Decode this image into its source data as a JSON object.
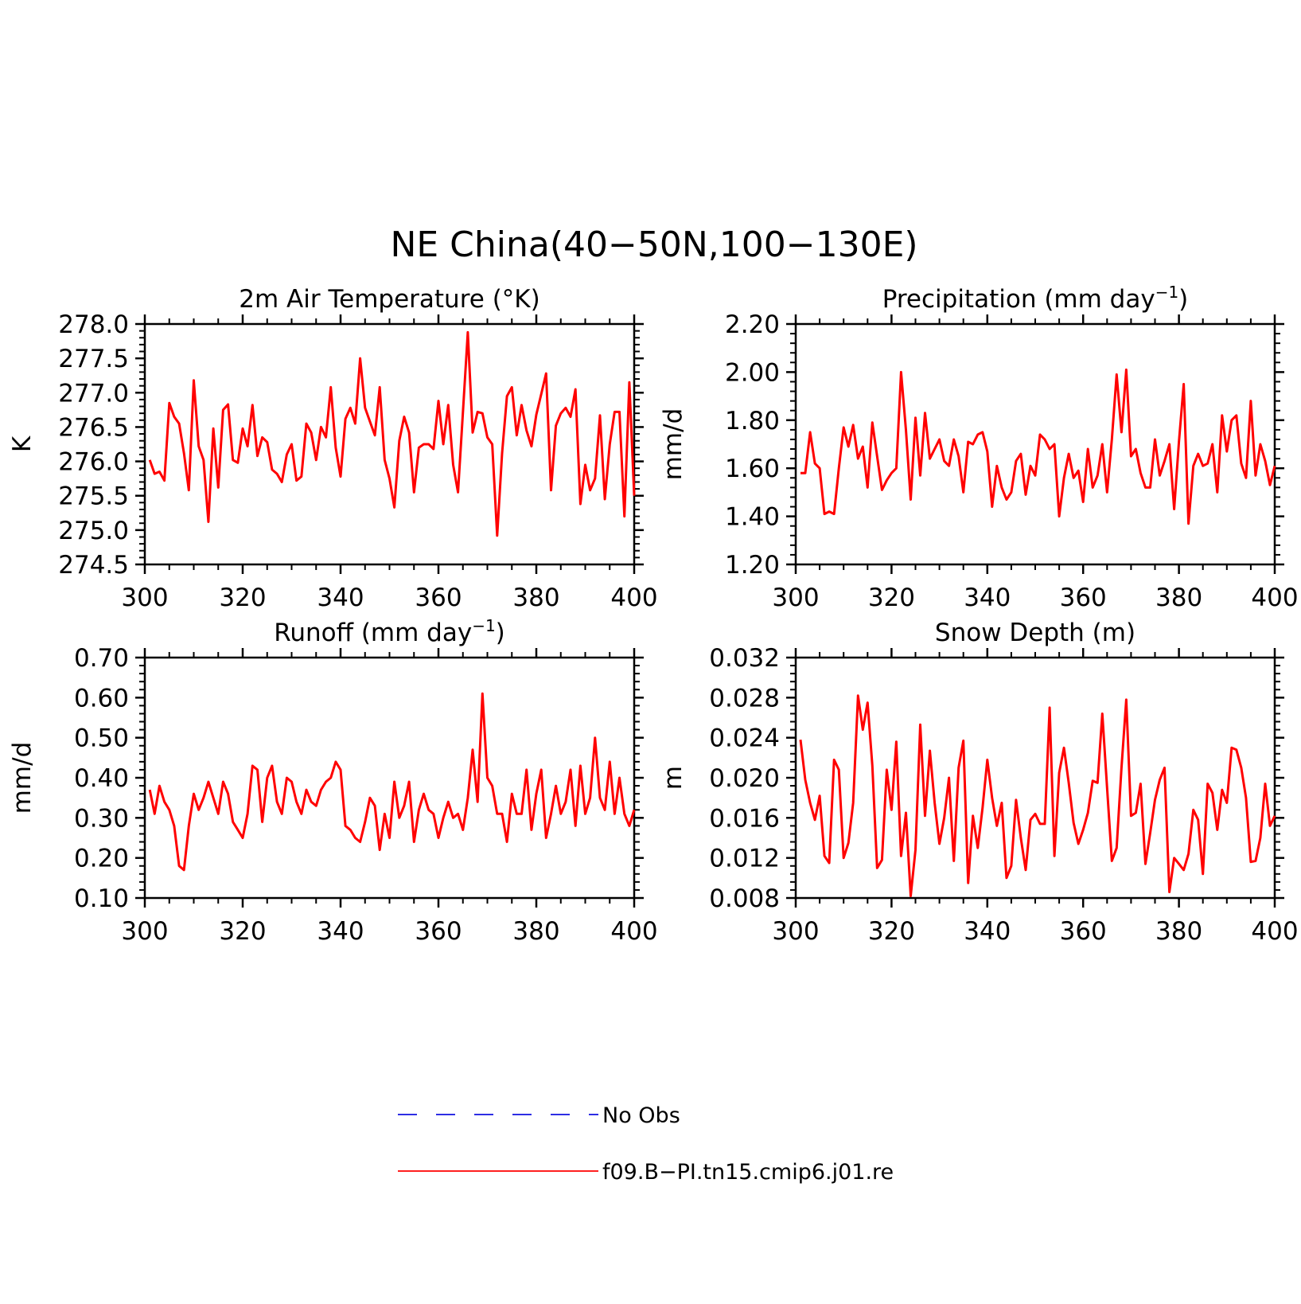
{
  "figure": {
    "title": "NE China(40−50N,100−130E)"
  },
  "legend": {
    "placement": "bottom-center",
    "entries": [
      {
        "label": "No Obs",
        "color": "#1010e0",
        "dash": true
      },
      {
        "label": "f09.B−PI.tn15.cmip6.j01.re",
        "color": "#ff0000",
        "dash": false
      }
    ]
  },
  "chart_data": [
    {
      "type": "line",
      "title": "2m Air Temperature (°K)",
      "title_sup": "",
      "title_after": "",
      "ylabel": "K",
      "xlim": [
        300,
        400
      ],
      "ylim": [
        274.5,
        278.0
      ],
      "xticks": [
        300,
        320,
        340,
        360,
        380,
        400
      ],
      "yticks": [
        274.5,
        275.0,
        275.5,
        276.0,
        276.5,
        277.0,
        277.5,
        278.0
      ],
      "ytick_labels": [
        "274.5",
        "275.0",
        "275.5",
        "276.0",
        "276.5",
        "277.0",
        "277.5",
        "278.0"
      ],
      "grid": false,
      "series": [
        {
          "color": "#ff0000",
          "x": [
            301,
            302,
            303,
            304,
            305,
            306,
            307,
            308,
            309,
            310,
            311,
            312,
            313,
            314,
            315,
            316,
            317,
            318,
            319,
            320,
            321,
            322,
            323,
            324,
            325,
            326,
            327,
            328,
            329,
            330,
            331,
            332,
            333,
            334,
            335,
            336,
            337,
            338,
            339,
            340,
            341,
            342,
            343,
            344,
            345,
            346,
            347,
            348,
            349,
            350,
            351,
            352,
            353,
            354,
            355,
            356,
            357,
            358,
            359,
            360,
            361,
            362,
            363,
            364,
            365,
            366,
            367,
            368,
            369,
            370,
            371,
            372,
            373,
            374,
            375,
            376,
            377,
            378,
            379,
            380,
            381,
            382,
            383,
            384,
            385,
            386,
            387,
            388,
            389,
            390,
            391,
            392,
            393,
            394,
            395,
            396,
            397,
            398,
            399,
            400
          ],
          "y": [
            276.02,
            275.82,
            275.85,
            275.72,
            276.85,
            276.65,
            276.55,
            276.12,
            275.58,
            277.18,
            276.22,
            276.02,
            275.12,
            276.48,
            275.62,
            276.75,
            276.83,
            276.02,
            275.98,
            276.48,
            276.22,
            276.82,
            276.08,
            276.35,
            276.28,
            275.88,
            275.82,
            275.7,
            276.1,
            276.25,
            275.72,
            275.78,
            276.55,
            276.42,
            276.02,
            276.5,
            276.35,
            277.08,
            276.2,
            275.78,
            276.62,
            276.78,
            276.55,
            277.5,
            276.78,
            276.58,
            276.38,
            277.08,
            276.02,
            275.75,
            275.33,
            276.3,
            276.65,
            276.42,
            275.55,
            276.2,
            276.25,
            276.25,
            276.18,
            276.88,
            276.25,
            276.82,
            275.95,
            275.55,
            276.72,
            277.88,
            276.42,
            276.72,
            276.7,
            276.35,
            276.25,
            274.92,
            276.12,
            276.95,
            277.08,
            276.38,
            276.82,
            276.45,
            276.22,
            276.68,
            276.98,
            277.28,
            275.58,
            276.52,
            276.7,
            276.78,
            276.65,
            277.05,
            275.38,
            275.95,
            275.58,
            275.75,
            276.67,
            275.45,
            276.25,
            276.72,
            276.72,
            275.2,
            277.15,
            275.5
          ]
        }
      ]
    },
    {
      "type": "line",
      "title": "Precipitation (mm day",
      "title_sup": "−1",
      "title_after": ")",
      "ylabel": "mm/d",
      "xlim": [
        300,
        400
      ],
      "ylim": [
        1.2,
        2.2
      ],
      "xticks": [
        300,
        320,
        340,
        360,
        380,
        400
      ],
      "yticks": [
        1.2,
        1.4,
        1.6,
        1.8,
        2.0,
        2.2
      ],
      "ytick_labels": [
        "1.20",
        "1.40",
        "1.60",
        "1.80",
        "2.00",
        "2.20"
      ],
      "grid": false,
      "series": [
        {
          "color": "#ff0000",
          "x": [
            301,
            302,
            303,
            304,
            305,
            306,
            307,
            308,
            309,
            310,
            311,
            312,
            313,
            314,
            315,
            316,
            317,
            318,
            319,
            320,
            321,
            322,
            323,
            324,
            325,
            326,
            327,
            328,
            329,
            330,
            331,
            332,
            333,
            334,
            335,
            336,
            337,
            338,
            339,
            340,
            341,
            342,
            343,
            344,
            345,
            346,
            347,
            348,
            349,
            350,
            351,
            352,
            353,
            354,
            355,
            356,
            357,
            358,
            359,
            360,
            361,
            362,
            363,
            364,
            365,
            366,
            367,
            368,
            369,
            370,
            371,
            372,
            373,
            374,
            375,
            376,
            377,
            378,
            379,
            380,
            381,
            382,
            383,
            384,
            385,
            386,
            387,
            388,
            389,
            390,
            391,
            392,
            393,
            394,
            395,
            396,
            397,
            398,
            399,
            400
          ],
          "y": [
            1.58,
            1.58,
            1.75,
            1.62,
            1.6,
            1.41,
            1.42,
            1.41,
            1.6,
            1.77,
            1.69,
            1.78,
            1.64,
            1.69,
            1.52,
            1.79,
            1.65,
            1.51,
            1.55,
            1.58,
            1.6,
            2.0,
            1.76,
            1.47,
            1.81,
            1.57,
            1.83,
            1.64,
            1.68,
            1.72,
            1.63,
            1.61,
            1.72,
            1.65,
            1.5,
            1.71,
            1.7,
            1.74,
            1.75,
            1.67,
            1.44,
            1.61,
            1.52,
            1.47,
            1.5,
            1.63,
            1.66,
            1.49,
            1.61,
            1.57,
            1.74,
            1.72,
            1.68,
            1.7,
            1.4,
            1.56,
            1.66,
            1.56,
            1.59,
            1.46,
            1.68,
            1.52,
            1.57,
            1.7,
            1.5,
            1.72,
            1.99,
            1.75,
            2.01,
            1.65,
            1.68,
            1.58,
            1.52,
            1.52,
            1.72,
            1.57,
            1.63,
            1.7,
            1.43,
            1.71,
            1.95,
            1.37,
            1.61,
            1.66,
            1.61,
            1.62,
            1.7,
            1.5,
            1.82,
            1.67,
            1.8,
            1.82,
            1.62,
            1.56,
            1.88,
            1.57,
            1.7,
            1.63,
            1.53,
            1.61
          ]
        }
      ]
    },
    {
      "type": "line",
      "title": "Runoff (mm day",
      "title_sup": "−1",
      "title_after": ")",
      "ylabel": "mm/d",
      "xlim": [
        300,
        400
      ],
      "ylim": [
        0.1,
        0.7
      ],
      "xticks": [
        300,
        320,
        340,
        360,
        380,
        400
      ],
      "yticks": [
        0.1,
        0.2,
        0.3,
        0.4,
        0.5,
        0.6,
        0.7
      ],
      "ytick_labels": [
        "0.10",
        "0.20",
        "0.30",
        "0.40",
        "0.50",
        "0.60",
        "0.70"
      ],
      "grid": false,
      "series": [
        {
          "color": "#ff0000",
          "x": [
            301,
            302,
            303,
            304,
            305,
            306,
            307,
            308,
            309,
            310,
            311,
            312,
            313,
            314,
            315,
            316,
            317,
            318,
            319,
            320,
            321,
            322,
            323,
            324,
            325,
            326,
            327,
            328,
            329,
            330,
            331,
            332,
            333,
            334,
            335,
            336,
            337,
            338,
            339,
            340,
            341,
            342,
            343,
            344,
            345,
            346,
            347,
            348,
            349,
            350,
            351,
            352,
            353,
            354,
            355,
            356,
            357,
            358,
            359,
            360,
            361,
            362,
            363,
            364,
            365,
            366,
            367,
            368,
            369,
            370,
            371,
            372,
            373,
            374,
            375,
            376,
            377,
            378,
            379,
            380,
            381,
            382,
            383,
            384,
            385,
            386,
            387,
            388,
            389,
            390,
            391,
            392,
            393,
            394,
            395,
            396,
            397,
            398,
            399,
            400
          ],
          "y": [
            0.37,
            0.31,
            0.38,
            0.34,
            0.32,
            0.28,
            0.18,
            0.17,
            0.28,
            0.36,
            0.32,
            0.35,
            0.39,
            0.35,
            0.31,
            0.39,
            0.36,
            0.29,
            0.27,
            0.25,
            0.31,
            0.43,
            0.42,
            0.29,
            0.4,
            0.43,
            0.34,
            0.31,
            0.4,
            0.39,
            0.34,
            0.31,
            0.37,
            0.34,
            0.33,
            0.37,
            0.39,
            0.4,
            0.44,
            0.42,
            0.28,
            0.27,
            0.25,
            0.24,
            0.29,
            0.35,
            0.33,
            0.22,
            0.31,
            0.25,
            0.39,
            0.3,
            0.33,
            0.39,
            0.24,
            0.32,
            0.36,
            0.32,
            0.31,
            0.25,
            0.3,
            0.34,
            0.3,
            0.31,
            0.27,
            0.35,
            0.47,
            0.34,
            0.61,
            0.4,
            0.38,
            0.31,
            0.31,
            0.24,
            0.36,
            0.31,
            0.31,
            0.42,
            0.27,
            0.36,
            0.42,
            0.25,
            0.31,
            0.38,
            0.31,
            0.34,
            0.42,
            0.28,
            0.43,
            0.31,
            0.35,
            0.5,
            0.35,
            0.32,
            0.44,
            0.31,
            0.4,
            0.31,
            0.28,
            0.32
          ]
        }
      ]
    },
    {
      "type": "line",
      "title": "Snow Depth (m)",
      "title_sup": "",
      "title_after": "",
      "ylabel": "m",
      "xlim": [
        300,
        400
      ],
      "ylim": [
        0.008,
        0.032
      ],
      "xticks": [
        300,
        320,
        340,
        360,
        380,
        400
      ],
      "yticks": [
        0.008,
        0.012,
        0.016,
        0.02,
        0.024,
        0.028,
        0.032
      ],
      "ytick_labels": [
        "0.008",
        "0.012",
        "0.016",
        "0.020",
        "0.024",
        "0.028",
        "0.032"
      ],
      "grid": false,
      "series": [
        {
          "color": "#ff0000",
          "x": [
            301,
            302,
            303,
            304,
            305,
            306,
            307,
            308,
            309,
            310,
            311,
            312,
            313,
            314,
            315,
            316,
            317,
            318,
            319,
            320,
            321,
            322,
            323,
            324,
            325,
            326,
            327,
            328,
            329,
            330,
            331,
            332,
            333,
            334,
            335,
            336,
            337,
            338,
            339,
            340,
            341,
            342,
            343,
            344,
            345,
            346,
            347,
            348,
            349,
            350,
            351,
            352,
            353,
            354,
            355,
            356,
            357,
            358,
            359,
            360,
            361,
            362,
            363,
            364,
            365,
            366,
            367,
            368,
            369,
            370,
            371,
            372,
            373,
            374,
            375,
            376,
            377,
            378,
            379,
            380,
            381,
            382,
            383,
            384,
            385,
            386,
            387,
            388,
            389,
            390,
            391,
            392,
            393,
            394,
            395,
            396,
            397,
            398,
            399,
            400
          ],
          "y": [
            0.0238,
            0.0198,
            0.0175,
            0.0158,
            0.0182,
            0.0122,
            0.0115,
            0.0218,
            0.0208,
            0.012,
            0.0135,
            0.0175,
            0.0282,
            0.0248,
            0.0275,
            0.0212,
            0.011,
            0.0118,
            0.0208,
            0.0168,
            0.0236,
            0.0122,
            0.0165,
            0.0082,
            0.0128,
            0.0253,
            0.0162,
            0.0227,
            0.0175,
            0.0134,
            0.016,
            0.02,
            0.0117,
            0.021,
            0.0237,
            0.0095,
            0.0162,
            0.013,
            0.017,
            0.0218,
            0.018,
            0.0152,
            0.0175,
            0.01,
            0.0112,
            0.0178,
            0.014,
            0.0108,
            0.0158,
            0.0164,
            0.0154,
            0.0154,
            0.027,
            0.0122,
            0.0205,
            0.023,
            0.0195,
            0.0155,
            0.0134,
            0.0148,
            0.0165,
            0.0197,
            0.0195,
            0.0264,
            0.019,
            0.0117,
            0.013,
            0.021,
            0.0278,
            0.0162,
            0.0165,
            0.0194,
            0.0114,
            0.0145,
            0.0178,
            0.0198,
            0.021,
            0.0086,
            0.012,
            0.0114,
            0.0108,
            0.0124,
            0.0168,
            0.0158,
            0.0104,
            0.0194,
            0.0185,
            0.0148,
            0.0188,
            0.0175,
            0.023,
            0.0228,
            0.021,
            0.018,
            0.0116,
            0.0117,
            0.014,
            0.0194,
            0.0152,
            0.0162
          ]
        }
      ]
    }
  ]
}
